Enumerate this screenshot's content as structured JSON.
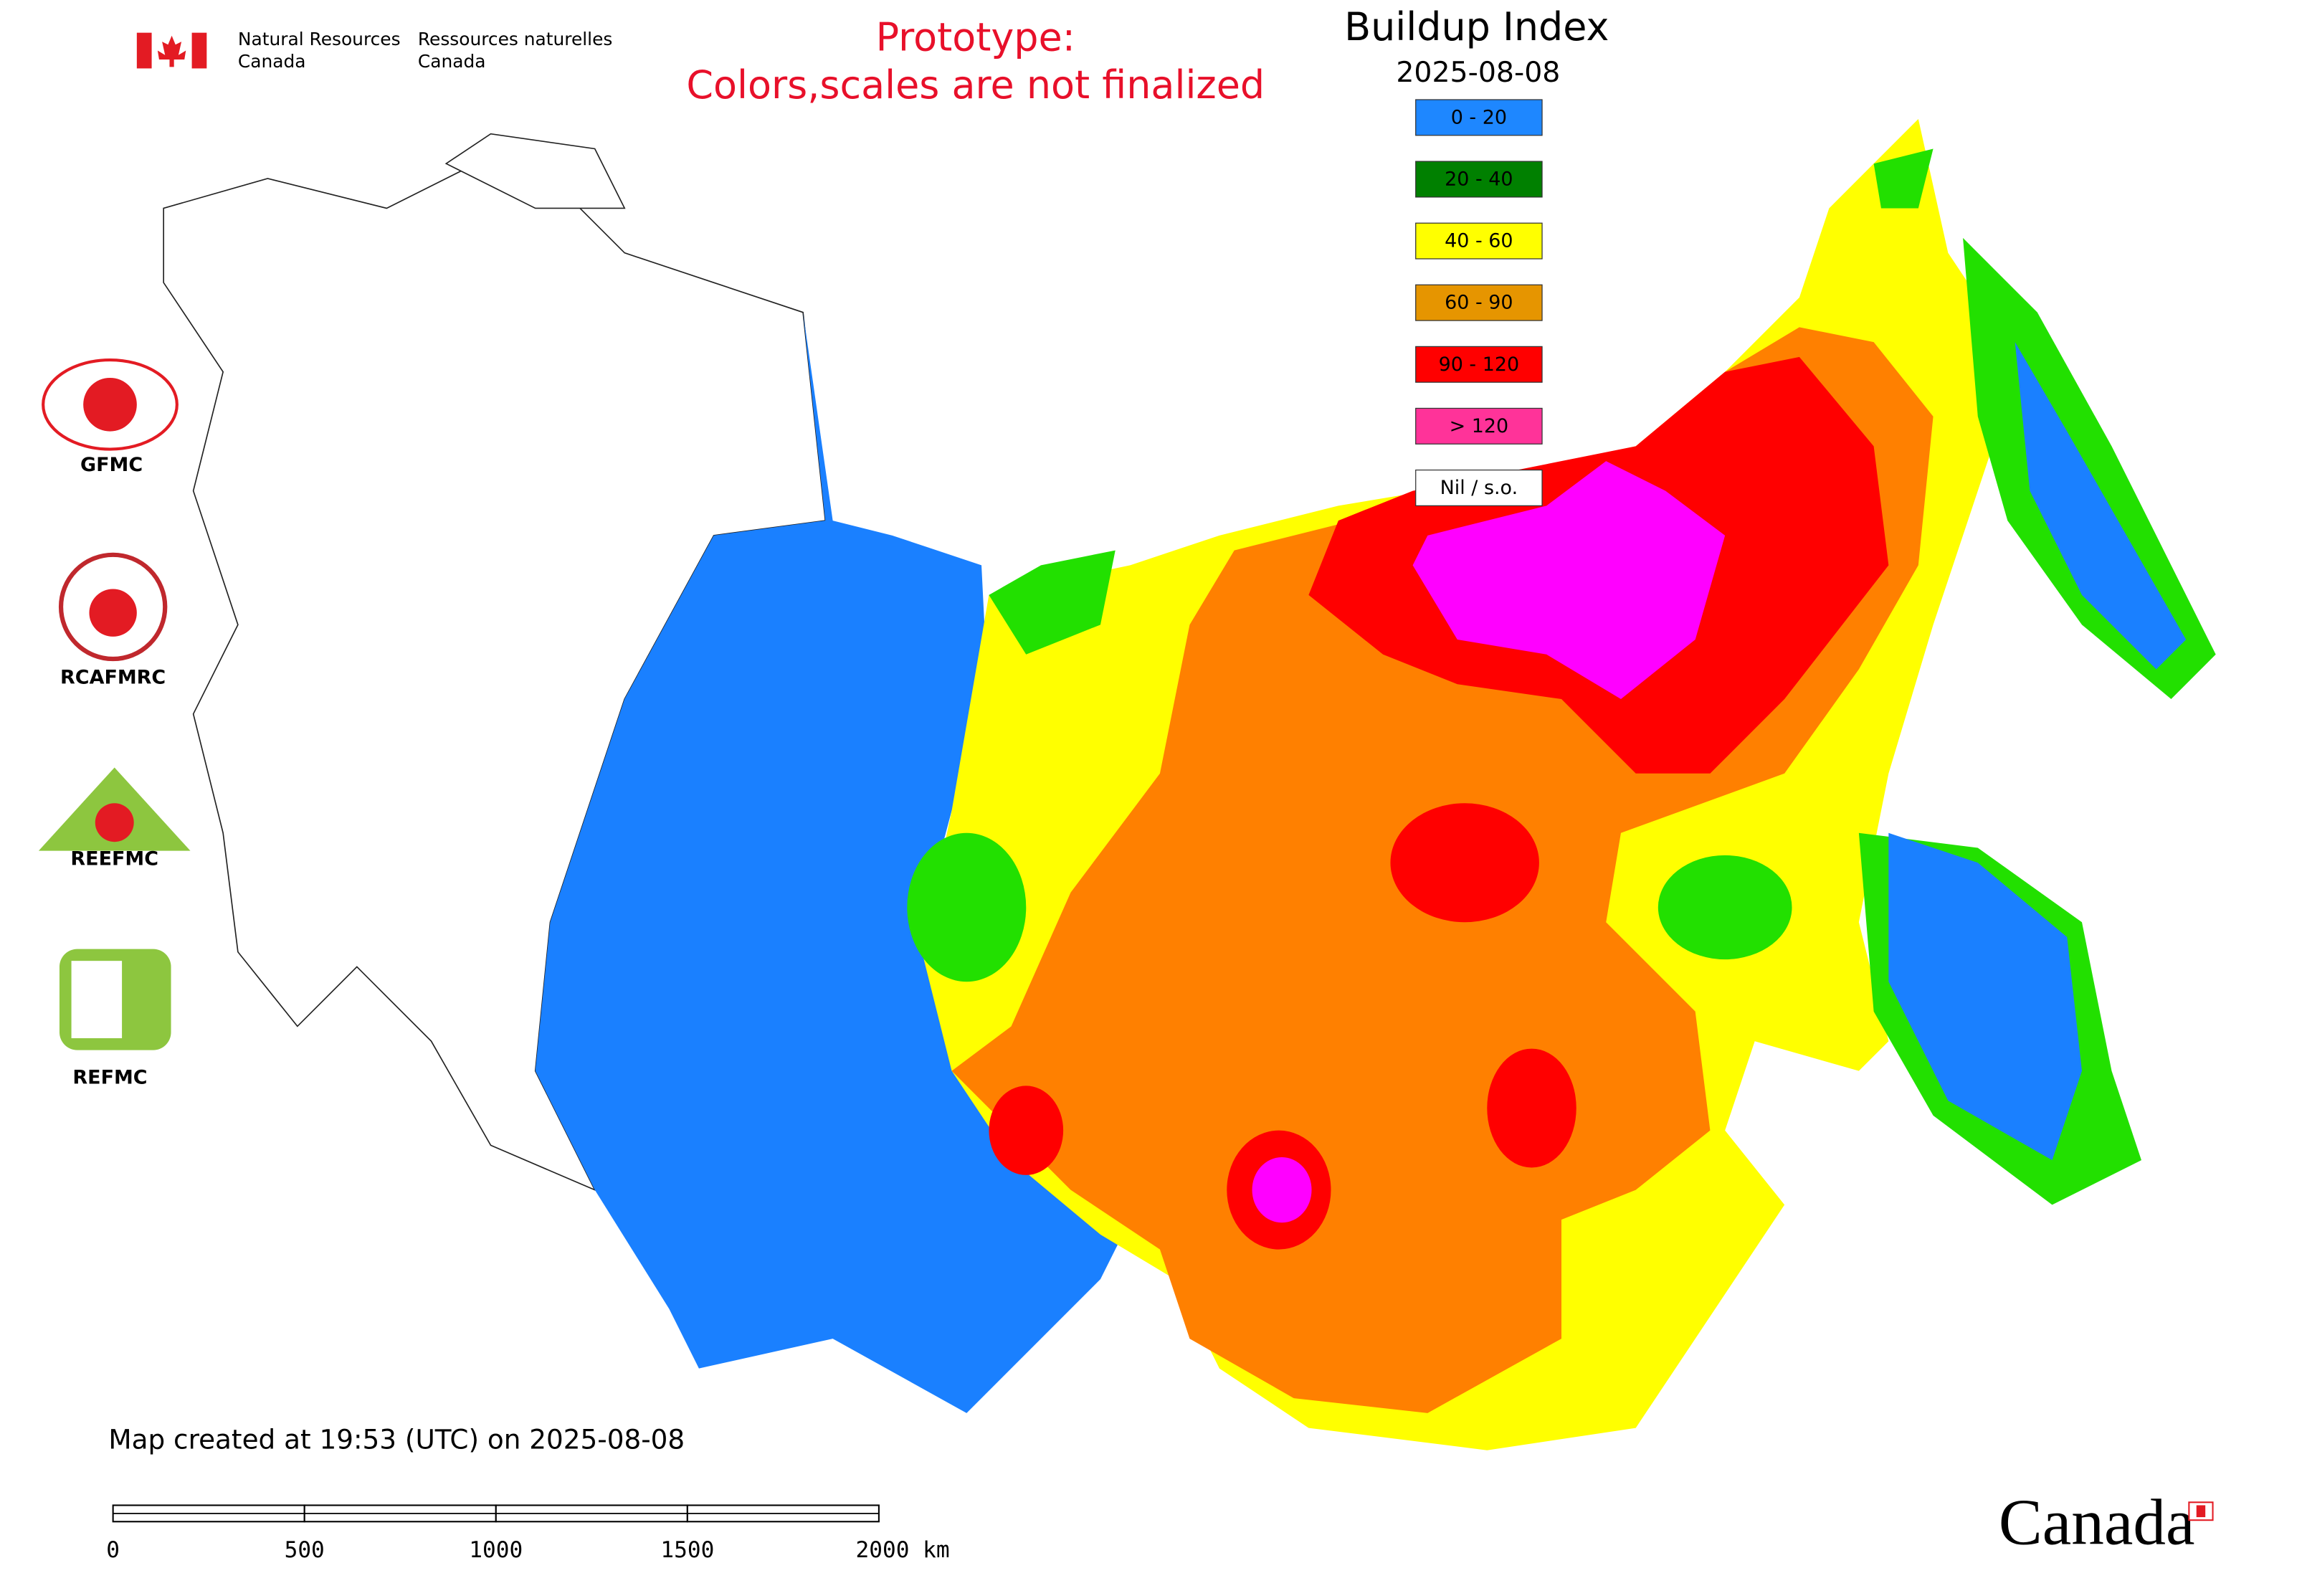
{
  "header": {
    "agency_en": [
      "Natural Resources",
      "Canada"
    ],
    "agency_fr": [
      "Ressources naturelles",
      "Canada"
    ]
  },
  "notice": [
    "Prototype:",
    "Colors,scales are not finalized"
  ],
  "legend": {
    "title": "Buildup Index",
    "date": "2025-08-08",
    "items": [
      {
        "label": "0 - 20",
        "color": "#1e87ff"
      },
      {
        "label": "20 - 40",
        "color": "#008000"
      },
      {
        "label": "40 - 60",
        "color": "#ffff00"
      },
      {
        "label": "60 - 90",
        "color": "#e69500"
      },
      {
        "label": "90 - 120",
        "color": "#ff0000"
      },
      {
        "label": "> 120",
        "color": "#ff3399"
      },
      {
        "label": "Nil / s.o.",
        "color": "#ffffff"
      }
    ]
  },
  "logos": [
    "GFMC",
    "RCAFMRC",
    "REEFMC",
    "REFMC"
  ],
  "footer": {
    "created": "Map created at 19:53 (UTC) on 2025-08-08",
    "wordmark": "Canada"
  },
  "scale_bar": {
    "ticks": [
      "0",
      "500",
      "1000",
      "1500",
      "2000 km"
    ]
  }
}
